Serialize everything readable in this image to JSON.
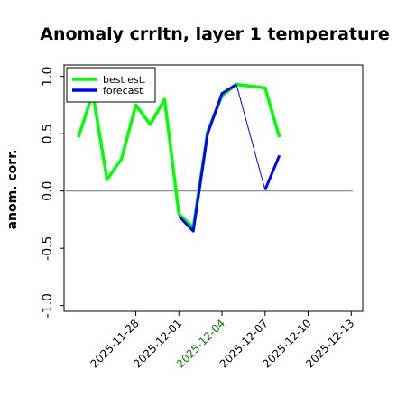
{
  "chart_data": {
    "type": "line",
    "title": "Anomaly crrltn, layer 1 temperature",
    "ylabel": "anom. corr.",
    "xlabel": "",
    "ylim": [
      -1.05,
      1.1
    ],
    "yticks": [
      -1.0,
      -0.5,
      0.0,
      0.5,
      1.0
    ],
    "ytick_labels": [
      "-1.0",
      "-0.5",
      "0.0",
      "0.5",
      "1.0"
    ],
    "x_ticks": [
      {
        "label": "2025-11-28",
        "x": 3,
        "color": "#000000"
      },
      {
        "label": "2025-12-01",
        "x": 6,
        "color": "#000000"
      },
      {
        "label": "2025-12-04",
        "x": 9,
        "color": "#008000"
      },
      {
        "label": "2025-12-07",
        "x": 12,
        "color": "#000000"
      },
      {
        "label": "2025-12-10",
        "x": 15,
        "color": "#000000"
      },
      {
        "label": "2025-12-13",
        "x": 18,
        "color": "#000000"
      }
    ],
    "xlim": [
      -2,
      18.8
    ],
    "zero_line": {
      "y": 0,
      "x_range": [
        -1.9,
        18.1
      ],
      "color": "#808080"
    },
    "legend": {
      "placement": "top-left"
    },
    "series": [
      {
        "name": "best est.",
        "color": "#00ff00",
        "linewidth": 3.5,
        "segments": [
          [
            [
              -1,
              0.47
            ],
            [
              0,
              0.85
            ],
            [
              1,
              0.1
            ],
            [
              2,
              0.28
            ],
            [
              3,
              0.75
            ],
            [
              4,
              0.58
            ],
            [
              5,
              0.8
            ],
            [
              6,
              -0.2
            ],
            [
              7,
              -0.32
            ],
            [
              8,
              0.52
            ],
            [
              9,
              0.83
            ],
            [
              10,
              0.93
            ],
            [
              12,
              0.9
            ],
            [
              13,
              0.47
            ]
          ]
        ]
      },
      {
        "name": "forecast",
        "color": "#0000ff",
        "linewidth": 3,
        "segments": [
          [
            [
              6,
              -0.22
            ],
            [
              7,
              -0.35
            ],
            [
              8,
              0.5
            ],
            [
              9,
              0.85
            ],
            [
              10,
              0.93
            ]
          ],
          [
            [
              12,
              0.01
            ],
            [
              13,
              0.31
            ]
          ]
        ],
        "thin_segments": [
          [
            [
              10,
              0.93
            ],
            [
              12,
              0.01
            ]
          ]
        ]
      }
    ]
  }
}
